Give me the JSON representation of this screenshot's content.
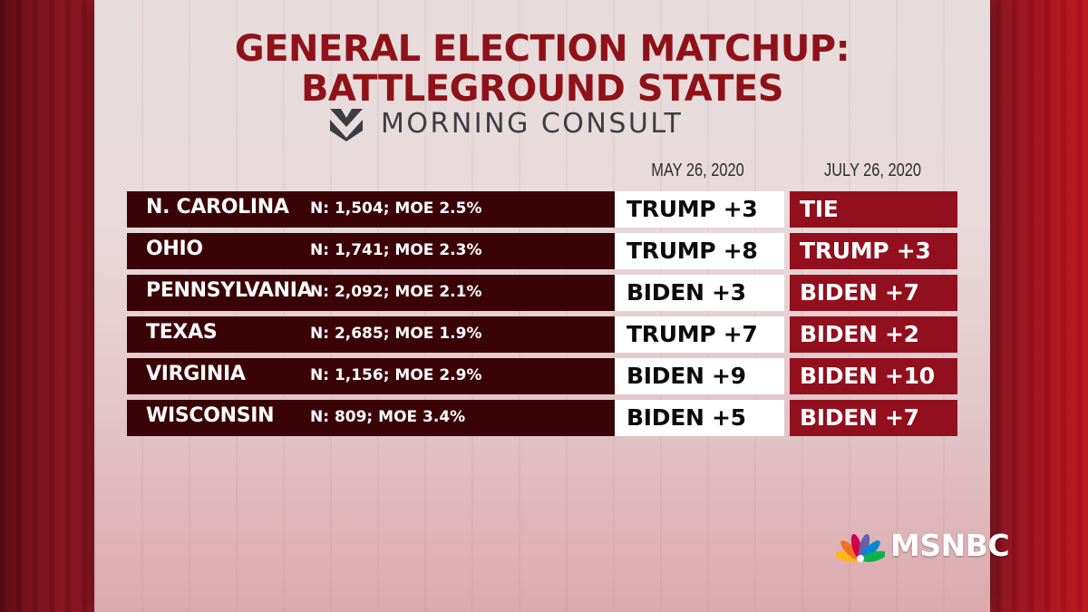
{
  "title": {
    "line1": "GENERAL ELECTION MATCHUP:",
    "line2": "BATTLEGROUND STATES"
  },
  "source": {
    "name": "MORNING CONSULT",
    "icon": "morning-consult-logo-icon"
  },
  "table": {
    "columns": [
      "MAY 26, 2020",
      "JULY 26, 2020"
    ],
    "rows": [
      {
        "state": "N. CAROLINA",
        "sample": "N: 1,504; MOE 2.5%",
        "may": "TRUMP +3",
        "july": "TIE"
      },
      {
        "state": "OHIO",
        "sample": "N: 1,741; MOE 2.3%",
        "may": "TRUMP +8",
        "july": "TRUMP +3"
      },
      {
        "state": "PENNSYLVANIA",
        "sample": "N: 2,092; MOE 2.1%",
        "may": "BIDEN +3",
        "july": "BIDEN +7"
      },
      {
        "state": "TEXAS",
        "sample": "N: 2,685; MOE 1.9%",
        "may": "TRUMP +7",
        "july": "BIDEN +2"
      },
      {
        "state": "VIRGINIA",
        "sample": "N: 1,156; MOE 2.9%",
        "may": "BIDEN +9",
        "july": "BIDEN +10"
      },
      {
        "state": "WISCONSIN",
        "sample": "N: 809; MOE 3.4%",
        "may": "BIDEN +5",
        "july": "BIDEN +7"
      }
    ]
  },
  "network": {
    "name": "MSNBC",
    "icon": "nbc-peacock-icon"
  },
  "colors": {
    "title": "#8f1219",
    "state_cell": "#3a0308",
    "july_cell": "#92101d",
    "may_cell": "#ffffff"
  }
}
